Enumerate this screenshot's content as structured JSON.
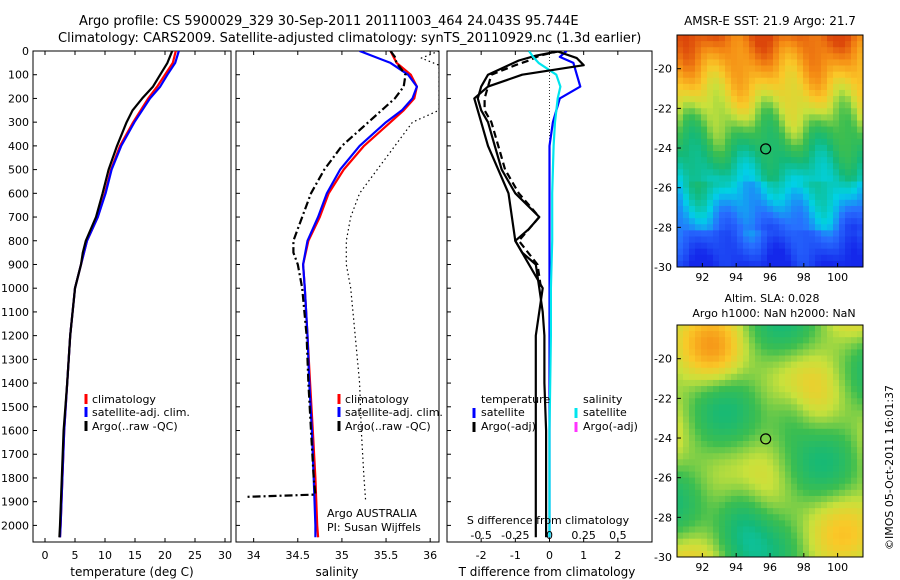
{
  "header": {
    "line1": "Argo profile: CS 5900029_329 30-Sep-2011 20111003_464 24.043S 95.744E",
    "line2": "Climatology: CARS2009. Satellite-adjusted climatology: synTS_20110929.nc (1.3d earlier)"
  },
  "footer_stamp": "©IMOS 05-Oct-2011 16:01:37",
  "colors": {
    "climatology": "#ff0000",
    "satellite": "#0000ff",
    "argo": "#000000",
    "satellite_salinity": "#00e5ee",
    "argo_adj_salinity": "#ff33ff"
  },
  "chart_data": [
    {
      "type": "line",
      "panel": "temperature",
      "xlabel": "temperature (deg C)",
      "ylabel": "",
      "xlim": [
        -2,
        31
      ],
      "ylim": [
        2070,
        0
      ],
      "xticks": [
        "0",
        "5",
        "10",
        "15",
        "20",
        "25",
        "30"
      ],
      "yticks": [
        "0",
        "100",
        "200",
        "300",
        "400",
        "500",
        "600",
        "700",
        "800",
        "900",
        "1000",
        "1100",
        "1200",
        "1300",
        "1400",
        "1500",
        "1600",
        "1700",
        "1800",
        "1900",
        "2000"
      ],
      "legend": {
        "placement": "lower-middle",
        "entries": [
          "climatology",
          "satellite-adj. clim.",
          "Argo(..raw -QC)"
        ]
      },
      "series": [
        {
          "name": "climatology",
          "color": "#ff0000",
          "style": "solid",
          "depth": [
            0,
            50,
            100,
            150,
            200,
            300,
            400,
            500,
            600,
            700,
            800,
            900,
            1000,
            1200,
            1400,
            1600,
            1800,
            2000,
            2050
          ],
          "values": [
            21.8,
            21.3,
            20.0,
            18.7,
            17.2,
            14.7,
            12.5,
            11.0,
            10.0,
            8.8,
            7.0,
            6.0,
            5.0,
            4.2,
            3.7,
            3.2,
            2.9,
            2.6,
            2.5
          ]
        },
        {
          "name": "satellite-adj. clim.",
          "color": "#0000ff",
          "style": "solid",
          "depth": [
            0,
            50,
            100,
            150,
            200,
            300,
            400,
            500,
            600,
            700,
            800,
            900,
            1000,
            1200,
            1400,
            1600,
            1800,
            2000,
            2050
          ],
          "values": [
            22.3,
            21.7,
            20.4,
            19.2,
            17.5,
            14.9,
            12.7,
            11.1,
            10.1,
            8.8,
            7.0,
            6.0,
            5.0,
            4.2,
            3.7,
            3.2,
            2.9,
            2.6,
            2.5
          ]
        },
        {
          "name": "Argo(..raw -QC)",
          "color": "#000000",
          "style": "solid",
          "depth": [
            0,
            50,
            100,
            150,
            200,
            250,
            300,
            400,
            500,
            600,
            700,
            800,
            850,
            900,
            1000,
            1200,
            1400,
            1600,
            1800,
            2000,
            2050
          ],
          "values": [
            21.2,
            20.4,
            19.2,
            18.0,
            16.2,
            14.6,
            13.6,
            12.0,
            10.6,
            9.6,
            8.5,
            6.8,
            6.3,
            6.0,
            5.0,
            4.2,
            3.7,
            3.1,
            2.8,
            2.5,
            2.4
          ]
        }
      ]
    },
    {
      "type": "line",
      "panel": "salinity",
      "xlabel": "salinity",
      "ylabel": "",
      "xlim": [
        33.8,
        36.1
      ],
      "ylim": [
        2070,
        0
      ],
      "xticks": [
        "34",
        "34.5",
        "35",
        "35.5",
        "36"
      ],
      "legend": {
        "placement": "lower-right",
        "entries": [
          "climatology",
          "satellite-adj. clim.",
          "Argo(..raw -QC)"
        ]
      },
      "annotations": [
        "Argo AUSTRALIA",
        "PI: Susan Wijffels"
      ],
      "series": [
        {
          "name": "climatology",
          "color": "#ff0000",
          "style": "solid",
          "depth": [
            0,
            50,
            100,
            150,
            200,
            250,
            300,
            400,
            500,
            600,
            700,
            800,
            900,
            1000,
            1200,
            1400,
            1600,
            1800,
            2000,
            2050
          ],
          "values": [
            35.55,
            35.62,
            35.78,
            35.85,
            35.82,
            35.7,
            35.55,
            35.25,
            35.02,
            34.85,
            34.75,
            34.62,
            34.56,
            34.58,
            34.61,
            34.64,
            34.67,
            34.7,
            34.72,
            34.73
          ]
        },
        {
          "name": "satellite-adj. clim.",
          "color": "#0000ff",
          "style": "solid",
          "depth": [
            0,
            50,
            100,
            150,
            200,
            250,
            300,
            400,
            500,
            600,
            700,
            800,
            900,
            1000,
            1200,
            1400,
            1600,
            1800,
            2000,
            2050
          ],
          "values": [
            35.2,
            35.55,
            35.75,
            35.85,
            35.8,
            35.68,
            35.5,
            35.2,
            34.98,
            34.83,
            34.73,
            34.61,
            34.56,
            34.58,
            34.61,
            34.63,
            34.66,
            34.68,
            34.7,
            34.7
          ]
        },
        {
          "name": "Argo(..raw -QC)",
          "color": "#000000",
          "style": "dashdot",
          "depth": [
            0,
            25,
            50,
            100,
            150,
            200,
            250,
            300,
            400,
            500,
            600,
            700,
            800,
            850,
            900,
            1000,
            1200,
            1400,
            1600,
            1800,
            1870,
            1880
          ],
          "values": [
            35.55,
            35.6,
            35.62,
            35.72,
            35.7,
            35.6,
            35.45,
            35.3,
            35.0,
            34.8,
            34.65,
            34.55,
            34.45,
            34.45,
            34.5,
            34.55,
            34.6,
            34.62,
            34.65,
            34.68,
            34.7,
            33.9
          ]
        },
        {
          "name": "",
          "color": "#000000",
          "style": "dotted",
          "depth": [
            0,
            30,
            60,
            100,
            150,
            200,
            250,
            300,
            400,
            500,
            600,
            700,
            800,
            900,
            1000,
            1200,
            1400,
            1600,
            1800,
            1900
          ],
          "values": [
            36.1,
            35.9,
            36.1,
            36.1,
            36.1,
            36.1,
            36.1,
            35.8,
            35.6,
            35.4,
            35.2,
            35.1,
            35.05,
            35.05,
            35.1,
            35.15,
            35.2,
            35.22,
            35.25,
            35.27
          ]
        }
      ]
    },
    {
      "type": "line",
      "panel": "difference",
      "xlabel": "T difference from climatology",
      "top_xlabel": "S difference from climatology",
      "xlim": [
        -3,
        3
      ],
      "ylim": [
        2070,
        0
      ],
      "xticks": [
        "-2",
        "-1",
        "0",
        "1",
        "2"
      ],
      "top_xticks": [
        "-0.5",
        "-0.25",
        "0",
        "0.25",
        "0.5"
      ],
      "legend": {
        "placement": "lower-middle",
        "headers": [
          "temperature",
          "salinity"
        ],
        "entries": [
          "satellite",
          "Argo(-adj)",
          "satellite",
          "Argo(-adj)"
        ]
      },
      "series": [
        {
          "name": "temperature satellite",
          "color": "#0000ff",
          "style": "solid",
          "depth": [
            0,
            25,
            50,
            100,
            150,
            200,
            300,
            400,
            600,
            800,
            1000,
            1200,
            1600,
            2000,
            2050
          ],
          "values": [
            0.5,
            0.3,
            0.7,
            0.8,
            0.9,
            0.3,
            0.1,
            0.0,
            0.0,
            0.0,
            0.0,
            0.0,
            0.0,
            0.0,
            0.0
          ]
        },
        {
          "name": "temperature Argo(-adj)",
          "color": "#000000",
          "style": "solid",
          "depth": [
            0,
            20,
            40,
            60,
            100,
            150,
            200,
            250,
            300,
            400,
            500,
            600,
            700,
            750,
            800,
            850,
            900,
            1000,
            1100,
            1200,
            1400,
            1600,
            1800,
            2000,
            2050
          ],
          "values": [
            0.3,
            -0.4,
            -0.9,
            -1.2,
            -1.8,
            -2.0,
            -2.1,
            -2.0,
            -1.8,
            -1.6,
            -1.4,
            -1.0,
            -0.3,
            -0.6,
            -1.0,
            -0.8,
            -0.4,
            -0.3,
            -0.2,
            -0.15,
            -0.15,
            -0.1,
            -0.1,
            -0.1,
            -0.1
          ]
        },
        {
          "name": "temperature Argo(-adj) dashed",
          "color": "#000000",
          "style": "dashed",
          "depth": [
            0,
            20,
            40,
            60,
            100,
            150,
            200,
            250,
            300,
            400,
            500,
            600,
            700,
            800,
            900,
            1000
          ],
          "values": [
            0.3,
            -0.3,
            -0.6,
            -1.0,
            -1.7,
            -1.8,
            -1.9,
            -1.9,
            -1.7,
            -1.5,
            -1.3,
            -0.9,
            -0.3,
            -0.9,
            -0.35,
            -0.25
          ]
        },
        {
          "name": "salinity satellite",
          "color": "#00e5ee",
          "style": "solid",
          "depth": [
            0,
            25,
            50,
            100,
            150,
            200,
            300,
            400,
            600,
            800,
            1000,
            1200,
            1600,
            2000,
            2050
          ],
          "values": [
            -0.15,
            -0.12,
            -0.08,
            0.05,
            0.08,
            0.06,
            0.04,
            0.03,
            0.02,
            0.02,
            0.01,
            0.01,
            0.0,
            0.0,
            0.0
          ]
        },
        {
          "name": "salinity Argo(-adj)",
          "color": "#000000",
          "style": "solid",
          "depth": [
            0,
            30,
            60,
            100,
            150,
            200,
            300,
            400,
            600,
            800,
            1000,
            1200,
            1600,
            2000,
            2050
          ],
          "values": [
            0.05,
            0.2,
            0.25,
            -0.2,
            -0.45,
            -0.55,
            -0.5,
            -0.45,
            -0.3,
            -0.25,
            -0.05,
            -0.1,
            -0.1,
            -0.1,
            -0.1
          ]
        }
      ]
    },
    {
      "type": "heatmap",
      "panel": "sst",
      "title": "AMSR-E SST: 21.9 Argo: 21.7",
      "xticks": [
        "92",
        "94",
        "96",
        "98",
        "100"
      ],
      "yticks": [
        "-20",
        "-22",
        "-24",
        "-26",
        "-28",
        "-30"
      ],
      "xlim": [
        90.5,
        101.5
      ],
      "ylim": [
        -30,
        -18.3
      ],
      "marker": {
        "lon": 95.744,
        "lat": -24.043
      }
    },
    {
      "type": "heatmap",
      "panel": "sla",
      "title": "Altim. SLA: 0.028",
      "subtitle": "Argo h1000: NaN h2000: NaN",
      "xticks": [
        "92",
        "94",
        "96",
        "98",
        "100"
      ],
      "yticks": [
        "-20",
        "-22",
        "-24",
        "-26",
        "-28",
        "-30"
      ],
      "xlim": [
        90.5,
        101.5
      ],
      "ylim": [
        -30,
        -18.3
      ],
      "marker": {
        "lon": 95.744,
        "lat": -24.043
      }
    }
  ]
}
